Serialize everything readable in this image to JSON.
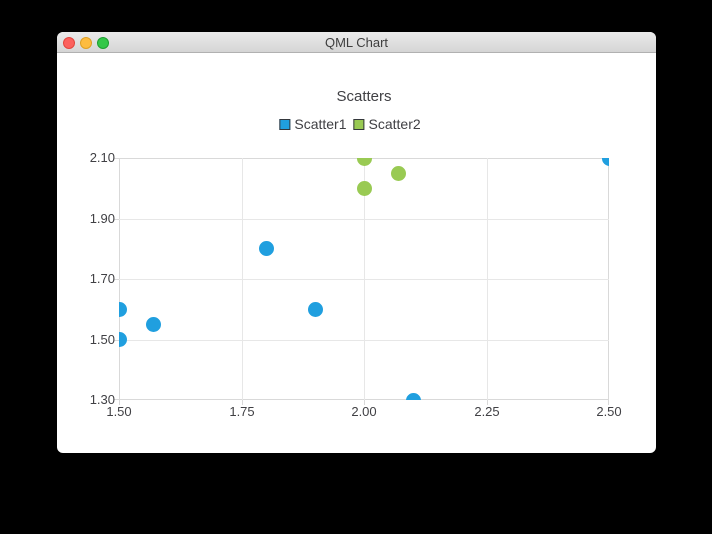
{
  "window": {
    "title": "QML Chart",
    "controls": {
      "close": "close",
      "minimize": "minimize",
      "zoom": "zoom"
    }
  },
  "chart_data": {
    "type": "scatter",
    "title": "Scatters",
    "legend_position": "top",
    "grid": true,
    "marker_size": 15,
    "xlim": [
      1.5,
      2.5
    ],
    "ylim": [
      1.3,
      2.1
    ],
    "x_ticks": [
      "1.50",
      "1.75",
      "2.00",
      "2.25",
      "2.50"
    ],
    "y_ticks": [
      "2.10",
      "1.90",
      "1.70",
      "1.50",
      "1.30"
    ],
    "series": [
      {
        "name": "Scatter1",
        "color": "#209fdf",
        "points": [
          [
            1.5,
            1.5
          ],
          [
            1.5,
            1.6
          ],
          [
            1.57,
            1.55
          ],
          [
            1.8,
            1.8
          ],
          [
            1.9,
            1.6
          ],
          [
            2.1,
            1.3
          ],
          [
            2.5,
            2.1
          ]
        ]
      },
      {
        "name": "Scatter2",
        "color": "#99ca53",
        "points": [
          [
            2.0,
            2.0
          ],
          [
            2.0,
            2.1
          ],
          [
            2.07,
            2.05
          ]
        ]
      }
    ]
  },
  "colors": {
    "label_text": "#404044",
    "gridline": "#e7e7e7",
    "axis_line": "#d9d9d9",
    "background": "#ffffff"
  }
}
